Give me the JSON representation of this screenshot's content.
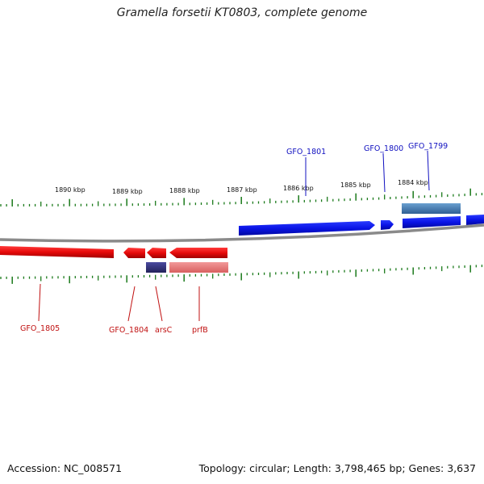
{
  "title": "Gramella forsetii KT0803, complete genome",
  "accession": "Accession: NC_008571",
  "summary": "Topology: circular; Length: 3,798,465 bp; Genes: 3,637",
  "colors": {
    "plus_strand": "#0a14e6",
    "minus_strand": "#e60a0a",
    "plus_rna": "#3f7ab8",
    "minus_rna_dark": "#3a3a80",
    "minus_rna_light": "#e87f7f",
    "tick": "#1a7a1a",
    "backbone": "#8a8a8a"
  },
  "kbp_labels": [
    "1890 kbp",
    "1889 kbp",
    "1888 kbp",
    "1887 kbp",
    "1886 kbp",
    "1885 kbp",
    "1884 kbp"
  ],
  "genes_plus": [
    "GFO_1801",
    "GFO_1800",
    "GFO_1799"
  ],
  "genes_minus": [
    "GFO_1805",
    "GFO_1804",
    "arsC",
    "prfB"
  ]
}
